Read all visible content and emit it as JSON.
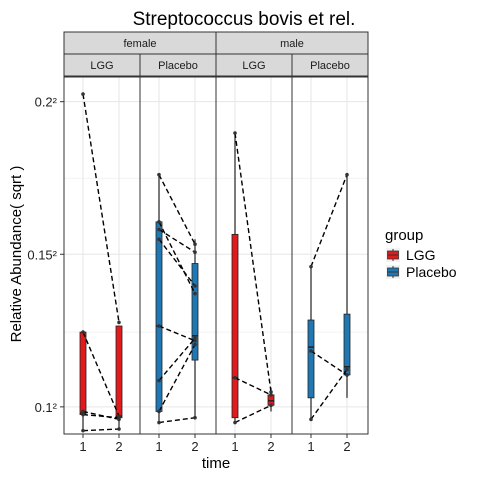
{
  "chart_data": {
    "type": "box",
    "title": "Streptococcus bovis et rel.",
    "xlabel": "time",
    "ylabel": "Relative Abundance( sqrt )",
    "y_scale": "sqrt",
    "ylim": [
      0.0083,
      0.0433
    ],
    "y_ticks": [
      {
        "value": 0.01,
        "label": "0.1²"
      },
      {
        "value": 0.0225,
        "label": "0.15²"
      },
      {
        "value": 0.04,
        "label": "0.2²"
      }
    ],
    "x_ticks": [
      "1",
      "2"
    ],
    "facet_rows": [
      "female",
      "male"
    ],
    "facet_cols": [
      "LGG",
      "Placebo"
    ],
    "legend": {
      "title": "group",
      "position": "right",
      "entries": [
        {
          "name": "LGG",
          "color": "#e31a1c"
        },
        {
          "name": "Placebo",
          "color": "#1f78b4"
        }
      ]
    },
    "grid": true,
    "panels": [
      {
        "sex": "female",
        "group": "LGG",
        "boxes": [
          {
            "time": "1",
            "min": 0.0085,
            "q1": 0.0095,
            "median": 0.0096,
            "q3": 0.0155,
            "max": 0.0155
          },
          {
            "time": "2",
            "min": 0.0086,
            "q1": 0.0093,
            "median": 0.0094,
            "q3": 0.016,
            "max": 0.016
          }
        ],
        "points": [
          [
            0.041,
            0.0163
          ],
          [
            0.0155,
            0.0094
          ],
          [
            0.0097,
            0.0092
          ],
          [
            0.0095,
            0.0093
          ],
          [
            0.0085,
            0.0086
          ]
        ]
      },
      {
        "sex": "female",
        "group": "Placebo",
        "boxes": [
          {
            "time": "1",
            "min": 0.009,
            "q1": 0.0097,
            "median": 0.016,
            "q3": 0.0258,
            "max": 0.031
          },
          {
            "time": "2",
            "min": 0.0093,
            "q1": 0.0133,
            "median": 0.0152,
            "q3": 0.0216,
            "max": 0.024
          }
        ],
        "points": [
          [
            0.031,
            0.0235
          ],
          [
            0.0258,
            0.0188
          ],
          [
            0.025,
            0.0227
          ],
          [
            0.024,
            0.0195
          ],
          [
            0.016,
            0.0148
          ],
          [
            0.0118,
            0.015
          ],
          [
            0.0097,
            0.0145
          ],
          [
            0.009,
            0.0093
          ]
        ]
      },
      {
        "sex": "male",
        "group": "LGG",
        "boxes": [
          {
            "time": "1",
            "min": 0.009,
            "q1": 0.0093,
            "median": 0.012,
            "q3": 0.0245,
            "max": 0.036
          },
          {
            "time": "2",
            "min": 0.0097,
            "q1": 0.0101,
            "median": 0.0104,
            "q3": 0.0108,
            "max": 0.0113
          }
        ],
        "points": [
          [
            0.036,
            0.011
          ],
          [
            0.012,
            0.0108
          ],
          [
            0.009,
            0.0101
          ]
        ]
      },
      {
        "sex": "male",
        "group": "Placebo",
        "boxes": [
          {
            "time": "1",
            "min": 0.0092,
            "q1": 0.0106,
            "median": 0.0143,
            "q3": 0.0165,
            "max": 0.0213
          },
          {
            "time": "2",
            "min": 0.0106,
            "q1": 0.0122,
            "median": 0.0128,
            "q3": 0.017,
            "max": 0.031
          }
        ],
        "points": [
          [
            0.0213,
            0.031
          ],
          [
            0.014,
            0.0122
          ],
          [
            0.0092,
            0.0126
          ]
        ]
      }
    ]
  }
}
